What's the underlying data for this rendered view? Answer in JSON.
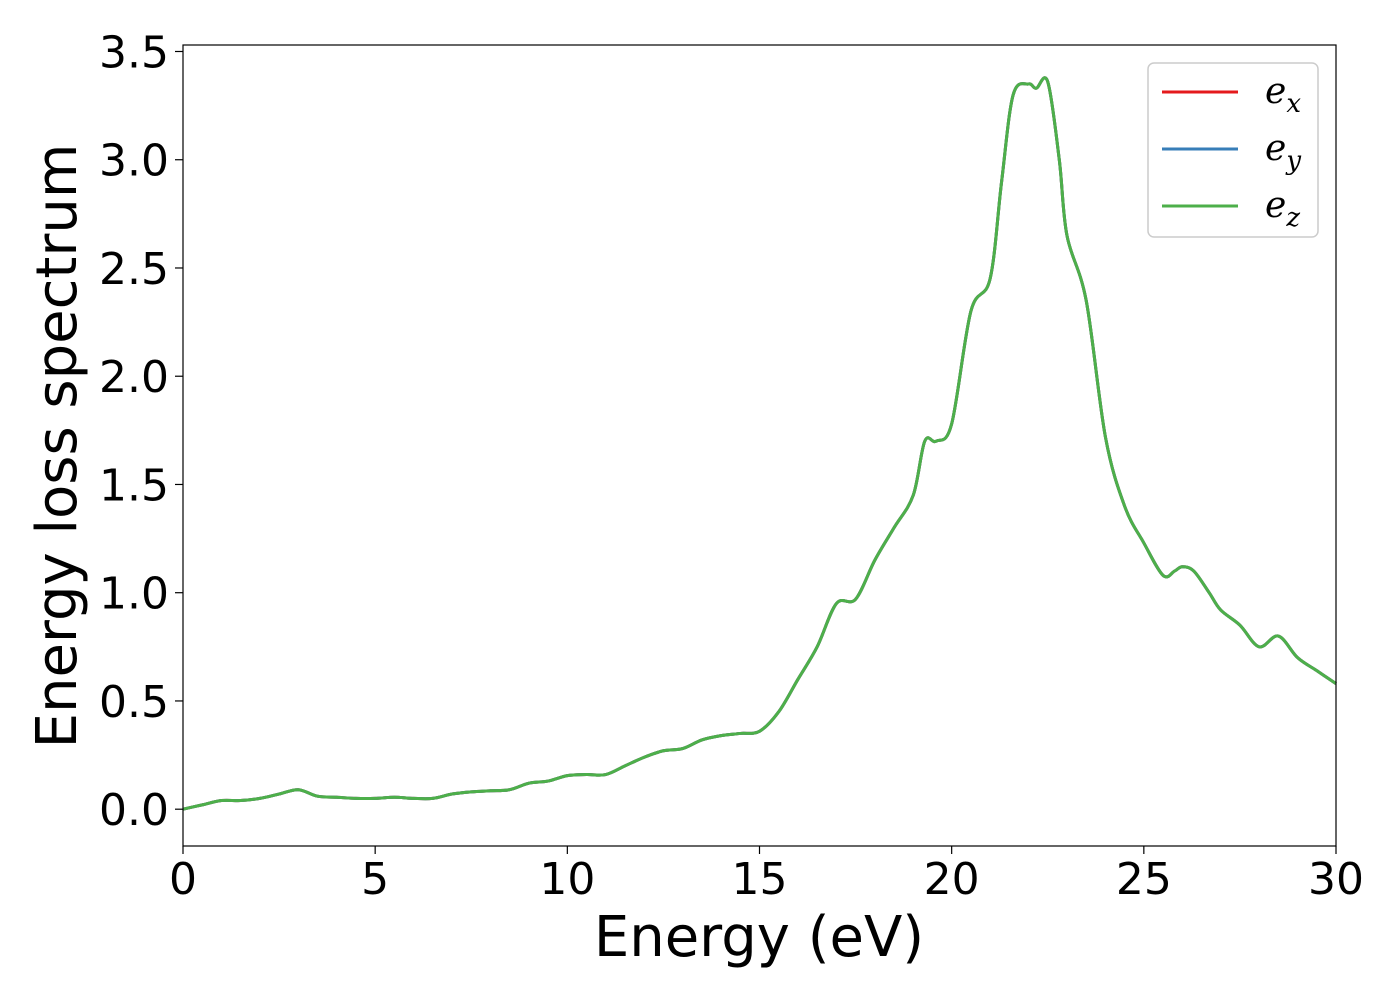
{
  "chart_data": {
    "type": "line",
    "title": "",
    "xlabel": "Energy (eV)",
    "ylabel": "Energy loss spectrum",
    "xlim": [
      0,
      30
    ],
    "ylim": [
      -0.17,
      3.53
    ],
    "xticks": [
      0,
      5,
      10,
      15,
      20,
      25,
      30
    ],
    "yticks": [
      0.0,
      0.5,
      1.0,
      1.5,
      2.0,
      2.5,
      3.0,
      3.5
    ],
    "grid": false,
    "legend_position": "top-right",
    "x": [
      0,
      0.5,
      1.0,
      1.5,
      2.0,
      2.5,
      3.0,
      3.5,
      4.0,
      4.5,
      5.0,
      5.5,
      6.0,
      6.5,
      7.0,
      7.5,
      8.0,
      8.5,
      9.0,
      9.5,
      10.0,
      10.5,
      11.0,
      11.5,
      12.0,
      12.5,
      13.0,
      13.5,
      14.0,
      14.5,
      15.0,
      15.5,
      16.0,
      16.5,
      17.0,
      17.5,
      18.0,
      18.5,
      19.0,
      19.3,
      19.6,
      20.0,
      20.5,
      21.0,
      21.3,
      21.6,
      22.0,
      22.2,
      22.5,
      22.8,
      23.0,
      23.5,
      24.0,
      24.5,
      25.0,
      25.5,
      25.8,
      26.0,
      26.3,
      26.7,
      27.0,
      27.5,
      28.0,
      28.5,
      29.0,
      29.5,
      30.0
    ],
    "series": [
      {
        "name": "e_x",
        "label": "e",
        "subscript": "x",
        "color": "#e41a1c",
        "values": [
          0.0,
          0.02,
          0.04,
          0.04,
          0.05,
          0.07,
          0.09,
          0.06,
          0.055,
          0.05,
          0.05,
          0.055,
          0.05,
          0.05,
          0.07,
          0.08,
          0.085,
          0.09,
          0.12,
          0.13,
          0.155,
          0.16,
          0.16,
          0.2,
          0.24,
          0.27,
          0.28,
          0.32,
          0.34,
          0.35,
          0.36,
          0.45,
          0.6,
          0.75,
          0.95,
          0.97,
          1.15,
          1.3,
          1.45,
          1.7,
          1.7,
          1.78,
          2.3,
          2.45,
          2.9,
          3.3,
          3.35,
          3.33,
          3.36,
          3.0,
          2.65,
          2.35,
          1.72,
          1.4,
          1.23,
          1.08,
          1.1,
          1.12,
          1.1,
          1.0,
          0.92,
          0.85,
          0.75,
          0.8,
          0.7,
          0.64,
          0.58
        ]
      },
      {
        "name": "e_y",
        "label": "e",
        "subscript": "y",
        "color": "#377eb8",
        "values": [
          0.0,
          0.02,
          0.04,
          0.04,
          0.05,
          0.07,
          0.09,
          0.06,
          0.055,
          0.05,
          0.05,
          0.055,
          0.05,
          0.05,
          0.07,
          0.08,
          0.085,
          0.09,
          0.12,
          0.13,
          0.155,
          0.16,
          0.16,
          0.2,
          0.24,
          0.27,
          0.28,
          0.32,
          0.34,
          0.35,
          0.36,
          0.45,
          0.6,
          0.75,
          0.95,
          0.97,
          1.15,
          1.3,
          1.45,
          1.7,
          1.7,
          1.78,
          2.3,
          2.45,
          2.9,
          3.3,
          3.35,
          3.33,
          3.36,
          3.0,
          2.65,
          2.35,
          1.72,
          1.4,
          1.23,
          1.08,
          1.1,
          1.12,
          1.1,
          1.0,
          0.92,
          0.85,
          0.75,
          0.8,
          0.7,
          0.64,
          0.58
        ]
      },
      {
        "name": "e_z",
        "label": "e",
        "subscript": "z",
        "color": "#4daf4a",
        "values": [
          0.0,
          0.02,
          0.04,
          0.04,
          0.05,
          0.07,
          0.09,
          0.06,
          0.055,
          0.05,
          0.05,
          0.055,
          0.05,
          0.05,
          0.07,
          0.08,
          0.085,
          0.09,
          0.12,
          0.13,
          0.155,
          0.16,
          0.16,
          0.2,
          0.24,
          0.27,
          0.28,
          0.32,
          0.34,
          0.35,
          0.36,
          0.45,
          0.6,
          0.75,
          0.95,
          0.97,
          1.15,
          1.3,
          1.45,
          1.7,
          1.7,
          1.78,
          2.3,
          2.45,
          2.9,
          3.3,
          3.35,
          3.33,
          3.36,
          3.0,
          2.65,
          2.35,
          1.72,
          1.4,
          1.23,
          1.08,
          1.1,
          1.12,
          1.1,
          1.0,
          0.92,
          0.85,
          0.75,
          0.8,
          0.7,
          0.64,
          0.58
        ]
      }
    ]
  }
}
